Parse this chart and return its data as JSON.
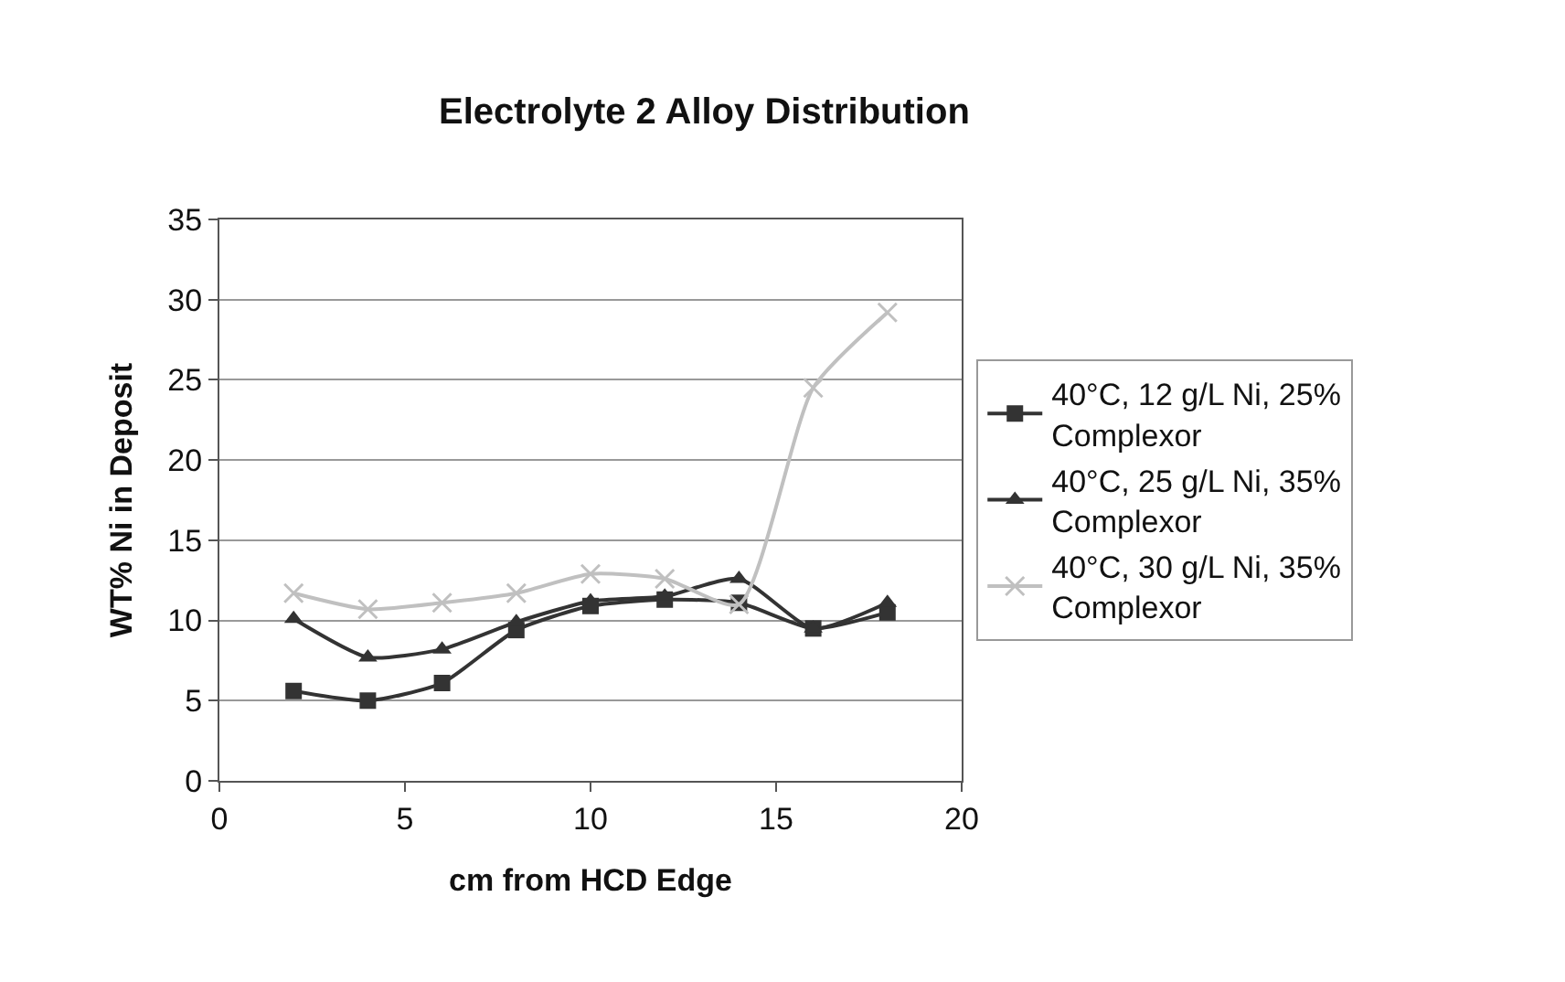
{
  "chart_data": {
    "type": "line",
    "title": "Electrolyte 2 Alloy Distribution",
    "xlabel": "cm from HCD Edge",
    "ylabel": "WT% Ni in Deposit",
    "x": [
      2,
      4,
      6,
      8,
      10,
      12,
      14,
      16,
      18
    ],
    "series": [
      {
        "name": "40°C, 12 g/L Ni, 25% Complexor",
        "color": "#333333",
        "marker": "square",
        "values": [
          5.6,
          5.0,
          6.1,
          9.4,
          10.9,
          11.3,
          11.1,
          9.5,
          10.5
        ]
      },
      {
        "name": "40°C, 25 g/L Ni, 35% Complexor",
        "color": "#333333",
        "marker": "triangle",
        "values": [
          10.1,
          7.7,
          8.2,
          9.9,
          11.2,
          11.5,
          12.6,
          9.5,
          11.1
        ]
      },
      {
        "name": "40°C, 30 g/L Ni, 35% Complexor",
        "color": "#c0c0c0",
        "marker": "cross",
        "values": [
          11.7,
          10.7,
          11.1,
          11.7,
          12.9,
          12.6,
          11.0,
          24.5,
          29.2
        ]
      }
    ],
    "xlim": [
      0,
      20
    ],
    "xticks": [
      0,
      5,
      10,
      15,
      20
    ],
    "ylim": [
      0,
      35
    ],
    "yticks": [
      0,
      5,
      10,
      15,
      20,
      25,
      30,
      35
    ],
    "grid": "y",
    "legend": "right",
    "line_style": "solid"
  }
}
